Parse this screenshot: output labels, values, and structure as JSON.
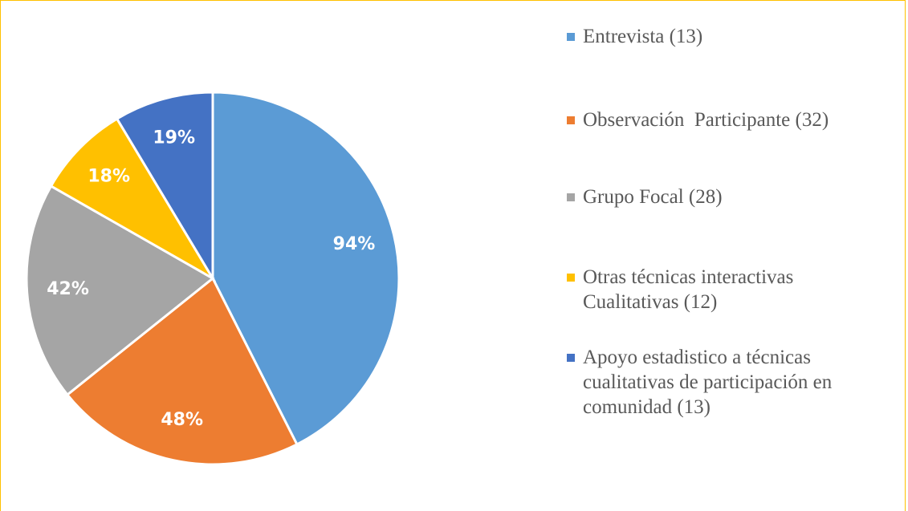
{
  "chart_data": {
    "type": "pie",
    "categories": [
      "Entrevista (13)",
      "Observación  Participante (32)",
      "Grupo Focal (28)",
      "Otras técnicas interactivas Cualitativas (12)",
      "Apoyo estadistico a técnicas cualitativas de participación en comunidad (13)"
    ],
    "values": [
      94,
      48,
      42,
      18,
      19
    ],
    "value_labels": [
      "94%",
      "48%",
      "42%",
      "18%",
      "19%"
    ],
    "colors": [
      "#5b9bd5",
      "#ed7d31",
      "#a5a5a5",
      "#ffc000",
      "#4472c4"
    ],
    "legend": "right"
  }
}
